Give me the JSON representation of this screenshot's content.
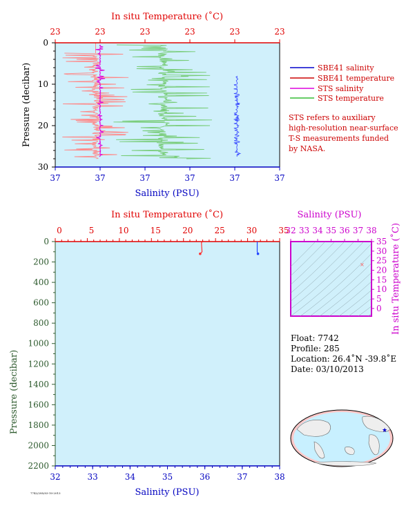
{
  "chart_data": [
    {
      "type": "line",
      "id": "near-surface",
      "top_axis": {
        "label": "In situ Temperature (˚C)",
        "ticks": [
          "23",
          "23",
          "23",
          "23",
          "23",
          "23"
        ],
        "color": "#e00000"
      },
      "bottom_axis": {
        "label": "Salinity (PSU)",
        "ticks": [
          "37",
          "37",
          "37",
          "37",
          "37",
          "37"
        ],
        "color": "#0000c0"
      },
      "left_axis": {
        "label": "Pressure (decibar)",
        "ticks": [
          "0",
          "10",
          "20",
          "30"
        ],
        "ylim": [
          0,
          30
        ],
        "reversed": true
      },
      "legend": {
        "placement": "right",
        "entries": [
          {
            "label": "SBE41 salinity",
            "color": "#0000cc"
          },
          {
            "label": "SBE41 temperature",
            "color": "#cc0000"
          },
          {
            "label": "STS salinity",
            "color": "#dd00dd"
          },
          {
            "label": "STS temperature",
            "color": "#33bb33"
          }
        ]
      },
      "note": [
        "STS refers to auxiliary",
        "high-resolution near-surface",
        "T-S measurements funded",
        "by NASA."
      ],
      "series": [
        {
          "name": "SBE41 salinity",
          "color": "#3344ff",
          "pressure_range": [
            8,
            27.5
          ],
          "position": 0.81
        },
        {
          "name": "SBE41 temperature",
          "color": "#ff8888",
          "pressure_range": [
            0,
            28
          ]
        },
        {
          "name": "STS salinity",
          "color": "#dd00dd",
          "pressure_range": [
            0.5,
            27.5
          ],
          "position": 0.2
        },
        {
          "name": "STS temperature",
          "color": "#77cc77",
          "pressure_range": [
            0,
            28
          ]
        }
      ]
    },
    {
      "type": "line",
      "id": "full-profile",
      "top_axis": {
        "label": "In situ Temperature (˚C)",
        "ticks": [
          "0",
          "5",
          "10",
          "15",
          "20",
          "25",
          "30",
          "35"
        ],
        "xlim": [
          0,
          35
        ],
        "color": "#e00000"
      },
      "bottom_axis": {
        "label": "Salinity (PSU)",
        "ticks": [
          "32",
          "33",
          "34",
          "35",
          "36",
          "37",
          "38"
        ],
        "xlim": [
          32,
          38
        ],
        "color": "#0000c0"
      },
      "left_axis": {
        "label": "Pressure (decibar)",
        "ticks": [
          "0",
          "200",
          "400",
          "600",
          "800",
          "1000",
          "1200",
          "1400",
          "1600",
          "1800",
          "2000",
          "2200"
        ],
        "ylim": [
          0,
          2200
        ],
        "reversed": true
      },
      "series": [
        {
          "name": "temperature",
          "color": "#ff3333",
          "points": [
            [
              23.0,
              0
            ],
            [
              22.8,
              10
            ],
            [
              22.9,
              100
            ],
            [
              22.6,
              120
            ]
          ]
        },
        {
          "name": "salinity",
          "color": "#2244ff",
          "points": [
            [
              37.4,
              0
            ],
            [
              37.4,
              10
            ],
            [
              37.4,
              100
            ],
            [
              37.42,
              120
            ]
          ]
        }
      ]
    },
    {
      "type": "scatter",
      "id": "ts-diagram",
      "top_axis": {
        "label": "Salinity (PSU)",
        "ticks": [
          "32",
          "33",
          "34",
          "35",
          "36",
          "37",
          "38"
        ],
        "xlim": [
          32,
          38
        ],
        "color": "#cc00cc"
      },
      "right_axis": {
        "label": "In situ Temperature (˚C)",
        "ticks": [
          "0",
          "5",
          "10",
          "15",
          "20",
          "25",
          "30",
          "35"
        ],
        "ylim": [
          -4,
          35
        ],
        "color": "#cc00cc"
      },
      "points": [
        [
          37.3,
          23.0
        ]
      ]
    }
  ],
  "float_info": {
    "float": "Float:  7742",
    "profile": "Profile:  285",
    "location": "Location:  26.4˚N  -39.8˚E",
    "date": "Date:  03/10/2013"
  },
  "map": {
    "marker_lat": 26.4,
    "marker_lon": -39.8
  },
  "footer_code": "7742/285/03-10-2013"
}
